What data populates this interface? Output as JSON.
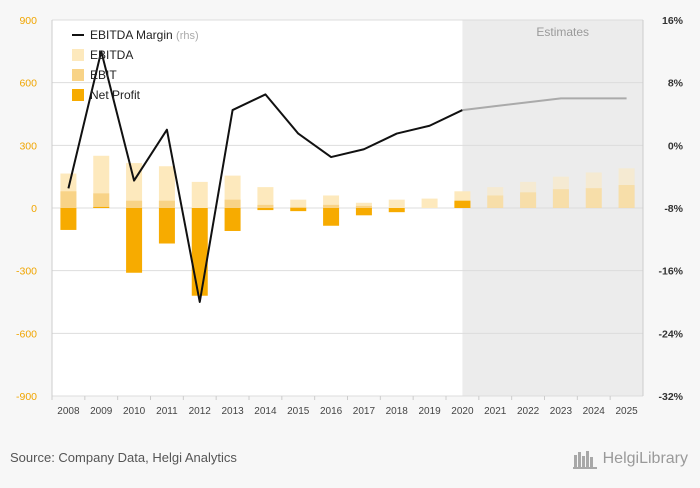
{
  "chart_data": {
    "type": "bar",
    "categories": [
      "2008",
      "2009",
      "2010",
      "2011",
      "2012",
      "2013",
      "2014",
      "2015",
      "2016",
      "2017",
      "2018",
      "2019",
      "2020",
      "2021",
      "2022",
      "2023",
      "2024",
      "2025"
    ],
    "estimates_from": "2020",
    "estimates_label": "Estimates",
    "series": [
      {
        "name": "EBITDA",
        "kind": "bar",
        "axis": "left",
        "color": "#fde9bd",
        "values": [
          165,
          250,
          215,
          200,
          125,
          155,
          100,
          40,
          60,
          25,
          40,
          45,
          80,
          100,
          125,
          150,
          170,
          190
        ]
      },
      {
        "name": "EBIT",
        "kind": "bar",
        "axis": "left",
        "color": "#f8d387",
        "values": [
          80,
          70,
          35,
          35,
          0,
          40,
          15,
          5,
          15,
          10,
          0,
          0,
          30,
          60,
          75,
          90,
          95,
          110
        ]
      },
      {
        "name": "Net Profit",
        "kind": "bar",
        "axis": "left",
        "color": "#f7ab00",
        "values": [
          -105,
          5,
          -310,
          -170,
          -420,
          -110,
          -10,
          -15,
          -85,
          -35,
          -20,
          0,
          35,
          0,
          0,
          0,
          0,
          0
        ]
      },
      {
        "name": "EBITDA Margin",
        "name_suffix": "(rhs)",
        "kind": "line",
        "axis": "right",
        "color": "#111111",
        "estimate_color": "#aaaaaa",
        "values": [
          -5.5,
          12,
          -4.5,
          2,
          -20,
          4.5,
          6.5,
          1.5,
          -1.5,
          -0.5,
          1.5,
          2.5,
          4.5,
          5,
          5.5,
          6,
          6,
          6
        ]
      }
    ],
    "left_axis": {
      "ticks": [
        900,
        600,
        300,
        0,
        -300,
        -600,
        -900
      ],
      "ylim": [
        -900,
        900
      ],
      "color": "#f0a500"
    },
    "right_axis": {
      "ticks": [
        "16%",
        "8%",
        "0%",
        "-8%",
        "-16%",
        "-24%",
        "-32%"
      ],
      "ylim": [
        -32,
        16
      ]
    },
    "grid": true,
    "legend": "top-left"
  },
  "footer": {
    "source": "Source: Company Data, Helgi Analytics",
    "brand": "HelgiLibrary"
  }
}
